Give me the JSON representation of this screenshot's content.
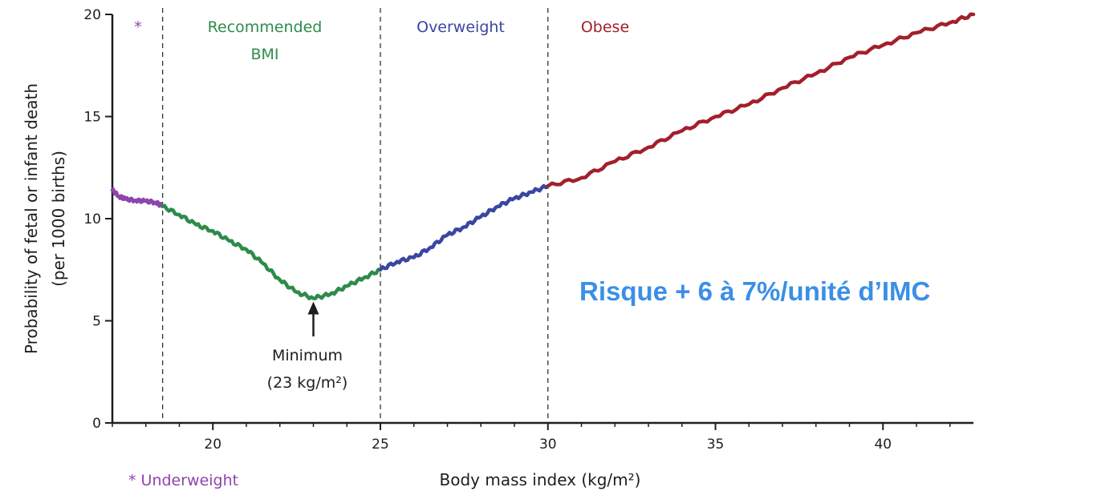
{
  "chart_data": {
    "type": "line",
    "xlabel": "Body mass index (kg/m²)",
    "ylabel_line1": "Probability of fetal or infant death",
    "ylabel_line2": "(per 1000 births)",
    "xlim": [
      17,
      42.7
    ],
    "ylim": [
      0,
      20
    ],
    "x_ticks": [
      20,
      25,
      30,
      35,
      40
    ],
    "y_ticks": [
      0,
      5,
      10,
      15,
      20
    ],
    "zone_boundaries": [
      18.5,
      25,
      30
    ],
    "zones": [
      {
        "name": "underweight",
        "marker": "*",
        "color": "#8e44ad"
      },
      {
        "name": "Recommended BMI",
        "line1": "Recommended",
        "line2": "BMI",
        "color": "#2e8b4a"
      },
      {
        "name": "Overweight",
        "line1": "Overweight",
        "color": "#3a46a0"
      },
      {
        "name": "Obese",
        "line1": "Obese",
        "color": "#a31f2b"
      }
    ],
    "footnote": "* Underweight",
    "annotation": {
      "line1": "Minimum",
      "line2": "(23 kg/m²)",
      "x": 23,
      "y": 6.1
    },
    "callout": {
      "text": "Risque + 6 à 7%/unité d’IMC",
      "color": "#3b8fe6"
    },
    "series": [
      {
        "segment": "underweight",
        "color": "#8e44ad",
        "x": [
          17.0,
          17.2,
          17.4,
          17.7,
          18.0,
          18.3,
          18.5
        ],
        "y": [
          11.4,
          11.1,
          10.95,
          10.9,
          10.85,
          10.8,
          10.6
        ]
      },
      {
        "segment": "recommended",
        "color": "#2e8b4a",
        "x": [
          18.5,
          19.0,
          19.5,
          20.0,
          20.5,
          21.0,
          21.5,
          22.0,
          22.5,
          23.0,
          23.5,
          24.0,
          24.5,
          25.0
        ],
        "y": [
          10.6,
          10.2,
          9.7,
          9.4,
          8.9,
          8.5,
          7.8,
          7.0,
          6.4,
          6.1,
          6.3,
          6.7,
          7.1,
          7.5
        ]
      },
      {
        "segment": "overweight",
        "color": "#3a46a0",
        "x": [
          25.0,
          25.5,
          26.0,
          26.5,
          27.0,
          27.5,
          28.0,
          28.5,
          29.0,
          29.5,
          30.0
        ],
        "y": [
          7.5,
          7.9,
          8.1,
          8.6,
          9.2,
          9.6,
          10.1,
          10.6,
          11.0,
          11.3,
          11.6
        ]
      },
      {
        "segment": "obese",
        "color": "#a31f2b",
        "x": [
          30.0,
          31.0,
          32.0,
          33.0,
          34.0,
          35.0,
          36.0,
          37.0,
          38.0,
          39.0,
          40.0,
          41.0,
          42.0,
          42.7
        ],
        "y": [
          11.6,
          12.0,
          12.8,
          13.5,
          14.3,
          15.0,
          15.6,
          16.4,
          17.1,
          17.9,
          18.5,
          19.1,
          19.6,
          20.0
        ]
      }
    ]
  }
}
